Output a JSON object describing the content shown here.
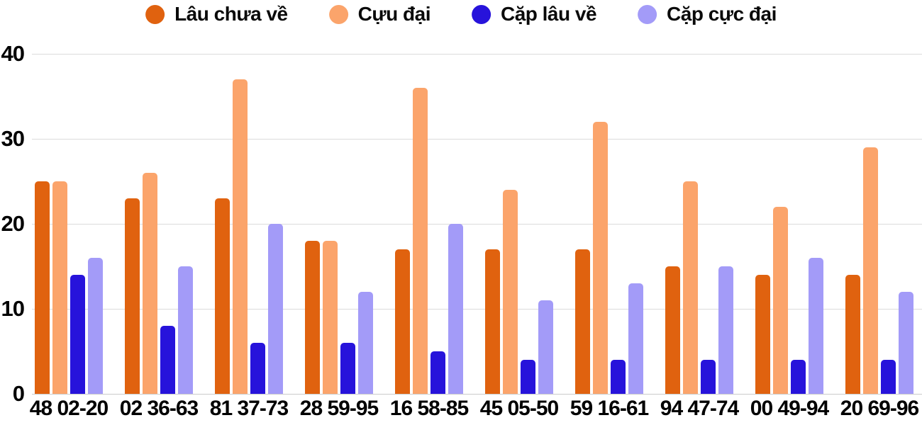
{
  "chart_data": {
    "type": "bar",
    "title": "",
    "xlabel": "",
    "ylabel": "",
    "categories": [
      "48 02-20",
      "02 36-63",
      "81 37-73",
      "28 59-95",
      "16 58-85",
      "45 05-50",
      "59 16-61",
      "94 47-74",
      "00 49-94",
      "20 69-96"
    ],
    "series": [
      {
        "name": "Lâu chưa về",
        "color": "#E0620F",
        "values": [
          25,
          23,
          23,
          18,
          17,
          17,
          17,
          15,
          14,
          14
        ]
      },
      {
        "name": "Cựu đại",
        "color": "#FBA46B",
        "values": [
          25,
          26,
          37,
          18,
          36,
          24,
          32,
          25,
          22,
          29
        ]
      },
      {
        "name": "Cặp lâu về",
        "color": "#2713DB",
        "values": [
          14,
          8,
          6,
          6,
          5,
          4,
          4,
          4,
          4,
          4
        ]
      },
      {
        "name": "Cặp cực đại",
        "color": "#A39BF8",
        "values": [
          16,
          15,
          20,
          12,
          20,
          11,
          13,
          15,
          16,
          12
        ]
      }
    ],
    "ylim": [
      0,
      40
    ],
    "yticks": [
      0,
      10,
      20,
      30,
      40
    ],
    "grid": true,
    "legend_position": "top-center",
    "background_color": "#FFFFFF",
    "gridline_color": "#DCDCDC",
    "baseline_color": "#CBCBCB",
    "axis_text_color": "#000000"
  }
}
